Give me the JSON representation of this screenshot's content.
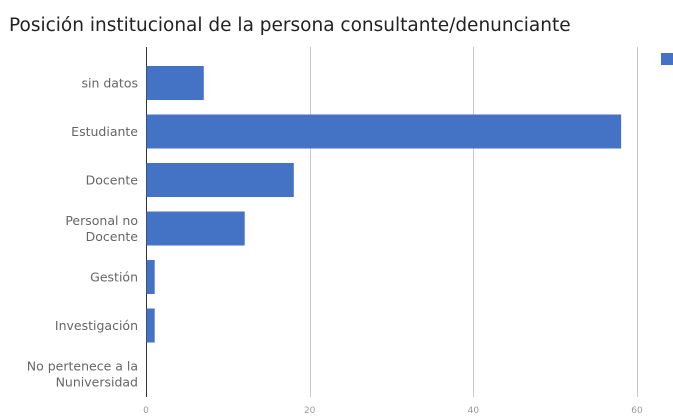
{
  "chart_data": {
    "type": "bar",
    "orientation": "horizontal",
    "title": "Posición institucional de la persona consultante/denunciante",
    "categories": [
      "sin datos",
      "Estudiante",
      "Docente",
      "Personal no Docente",
      "Gestión",
      "Investigación",
      "No pertenece a la Nuniversidad"
    ],
    "category_lines": [
      [
        "sin datos"
      ],
      [
        "Estudiante"
      ],
      [
        "Docente"
      ],
      [
        "Personal no",
        "Docente"
      ],
      [
        "Gestión"
      ],
      [
        "Investigación"
      ],
      [
        "No pertenece a la",
        "Nuniversidad"
      ]
    ],
    "values": [
      7,
      58,
      18,
      12,
      1,
      1,
      0
    ],
    "xlim": [
      0,
      60
    ],
    "xticks": [
      0,
      20,
      40,
      60
    ],
    "xlabel": "",
    "ylabel": "",
    "grid": true,
    "legend_position": "top-right",
    "bar_color": "#4472c4"
  }
}
